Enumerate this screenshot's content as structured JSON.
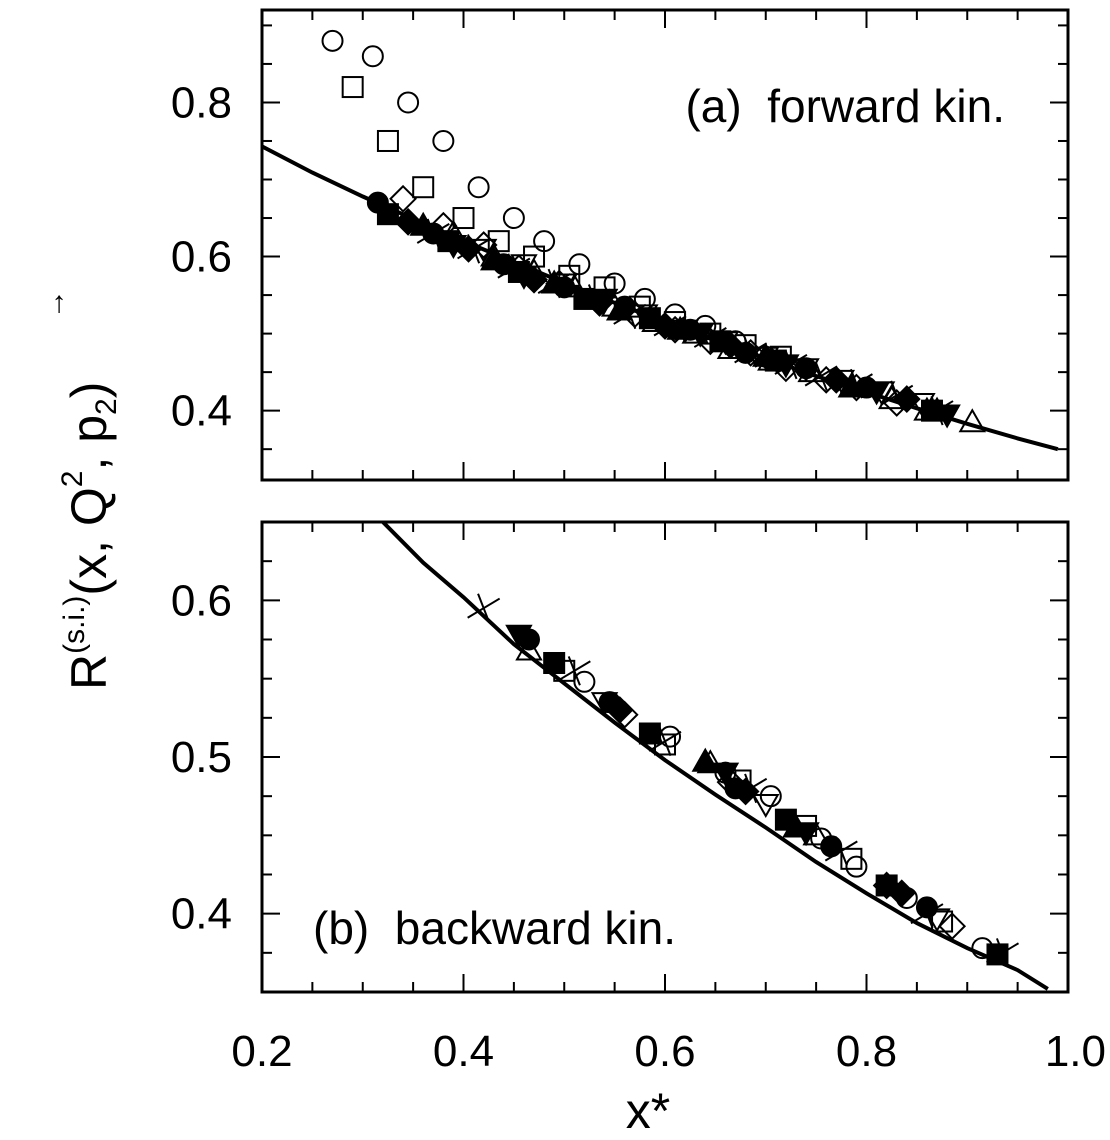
{
  "chart_data": {
    "type": "scatter",
    "x_axis": {
      "label": "x*",
      "range": [
        0.2,
        1.0
      ],
      "ticks": [
        "0.2",
        "0.4",
        "0.6",
        "0.8",
        "1.0"
      ]
    },
    "y_axis": {
      "label_main": "R",
      "label_sup": "(s.i.)",
      "label_args": "(x, Q",
      "label_q_exp": "2",
      "label_sep": ", p",
      "label_p_sub": "2",
      "label_close": ")",
      "arrow": "→"
    },
    "panels": [
      {
        "id": "a",
        "label": "(a)  forward kin.",
        "ylim": [
          0.31,
          0.92
        ],
        "y_ticks": [
          0.4,
          0.6,
          0.8
        ],
        "y_tick_labels": [
          "0.4",
          "0.6",
          "0.8"
        ],
        "curve": [
          [
            0.2,
            0.743
          ],
          [
            0.25,
            0.709
          ],
          [
            0.3,
            0.678
          ],
          [
            0.35,
            0.649
          ],
          [
            0.4,
            0.62
          ],
          [
            0.45,
            0.593
          ],
          [
            0.5,
            0.566
          ],
          [
            0.55,
            0.54
          ],
          [
            0.6,
            0.515
          ],
          [
            0.65,
            0.491
          ],
          [
            0.7,
            0.468
          ],
          [
            0.75,
            0.445
          ],
          [
            0.8,
            0.424
          ],
          [
            0.85,
            0.403
          ],
          [
            0.9,
            0.383
          ],
          [
            0.95,
            0.364
          ],
          [
            0.99,
            0.35
          ]
        ],
        "series": [
          {
            "marker": "open-circle",
            "points": [
              [
                0.27,
                0.88
              ],
              [
                0.31,
                0.86
              ],
              [
                0.345,
                0.8
              ],
              [
                0.38,
                0.75
              ],
              [
                0.415,
                0.69
              ],
              [
                0.45,
                0.65
              ],
              [
                0.48,
                0.62
              ],
              [
                0.515,
                0.59
              ],
              [
                0.55,
                0.565
              ],
              [
                0.58,
                0.545
              ],
              [
                0.61,
                0.525
              ],
              [
                0.64,
                0.51
              ],
              [
                0.67,
                0.49
              ],
              [
                0.7,
                0.47
              ]
            ]
          },
          {
            "marker": "open-square",
            "points": [
              [
                0.29,
                0.82
              ],
              [
                0.325,
                0.75
              ],
              [
                0.36,
                0.69
              ],
              [
                0.4,
                0.65
              ],
              [
                0.435,
                0.62
              ],
              [
                0.47,
                0.6
              ],
              [
                0.505,
                0.575
              ],
              [
                0.54,
                0.56
              ],
              [
                0.575,
                0.535
              ],
              [
                0.61,
                0.515
              ],
              [
                0.645,
                0.5
              ],
              [
                0.68,
                0.485
              ],
              [
                0.715,
                0.47
              ]
            ]
          },
          {
            "marker": "open-diamond",
            "points": [
              [
                0.34,
                0.675
              ],
              [
                0.38,
                0.64
              ],
              [
                0.42,
                0.615
              ],
              [
                0.455,
                0.585
              ],
              [
                0.495,
                0.565
              ],
              [
                0.535,
                0.54
              ],
              [
                0.57,
                0.525
              ],
              [
                0.61,
                0.505
              ],
              [
                0.645,
                0.49
              ],
              [
                0.685,
                0.475
              ],
              [
                0.72,
                0.455
              ],
              [
                0.76,
                0.44
              ],
              [
                0.79,
                0.43
              ],
              [
                0.83,
                0.41
              ]
            ]
          },
          {
            "marker": "open-triangle-up",
            "points": [
              [
                0.39,
                0.63
              ],
              [
                0.43,
                0.6
              ],
              [
                0.47,
                0.58
              ],
              [
                0.51,
                0.56
              ],
              [
                0.55,
                0.535
              ],
              [
                0.59,
                0.515
              ],
              [
                0.63,
                0.5
              ],
              [
                0.665,
                0.48
              ],
              [
                0.705,
                0.465
              ],
              [
                0.745,
                0.45
              ],
              [
                0.785,
                0.43
              ],
              [
                0.825,
                0.415
              ],
              [
                0.86,
                0.4
              ],
              [
                0.905,
                0.385
              ]
            ]
          },
          {
            "marker": "open-triangle-down",
            "points": [
              [
                0.42,
                0.61
              ],
              [
                0.46,
                0.59
              ],
              [
                0.5,
                0.565
              ],
              [
                0.54,
                0.545
              ],
              [
                0.58,
                0.525
              ],
              [
                0.62,
                0.505
              ],
              [
                0.66,
                0.49
              ],
              [
                0.7,
                0.47
              ],
              [
                0.74,
                0.455
              ],
              [
                0.775,
                0.44
              ],
              [
                0.815,
                0.425
              ],
              [
                0.855,
                0.41
              ]
            ]
          },
          {
            "marker": "cross",
            "points": [
              [
                0.37,
                0.63
              ],
              [
                0.41,
                0.61
              ],
              [
                0.45,
                0.585
              ],
              [
                0.49,
                0.565
              ],
              [
                0.53,
                0.545
              ],
              [
                0.565,
                0.525
              ],
              [
                0.605,
                0.51
              ],
              [
                0.645,
                0.495
              ],
              [
                0.685,
                0.475
              ],
              [
                0.725,
                0.46
              ],
              [
                0.755,
                0.445
              ],
              [
                0.79,
                0.435
              ],
              [
                0.83,
                0.42
              ],
              [
                0.87,
                0.4
              ]
            ]
          },
          {
            "marker": "filled-circle",
            "points": [
              [
                0.315,
                0.67
              ],
              [
                0.37,
                0.63
              ],
              [
                0.44,
                0.59
              ],
              [
                0.5,
                0.56
              ],
              [
                0.56,
                0.535
              ],
              [
                0.625,
                0.505
              ],
              [
                0.68,
                0.475
              ],
              [
                0.74,
                0.455
              ],
              [
                0.8,
                0.43
              ]
            ]
          },
          {
            "marker": "filled-square",
            "points": [
              [
                0.325,
                0.655
              ],
              [
                0.385,
                0.62
              ],
              [
                0.455,
                0.58
              ],
              [
                0.52,
                0.545
              ],
              [
                0.585,
                0.52
              ],
              [
                0.655,
                0.49
              ],
              [
                0.71,
                0.465
              ],
              [
                0.865,
                0.4
              ]
            ]
          },
          {
            "marker": "filled-diamond",
            "points": [
              [
                0.345,
                0.645
              ],
              [
                0.405,
                0.61
              ],
              [
                0.47,
                0.57
              ],
              [
                0.535,
                0.54
              ],
              [
                0.6,
                0.51
              ],
              [
                0.665,
                0.485
              ],
              [
                0.77,
                0.44
              ],
              [
                0.84,
                0.415
              ]
            ]
          },
          {
            "marker": "filled-triangle-up",
            "points": [
              [
                0.36,
                0.64
              ],
              [
                0.43,
                0.595
              ],
              [
                0.49,
                0.565
              ],
              [
                0.555,
                0.53
              ],
              [
                0.615,
                0.505
              ],
              [
                0.7,
                0.47
              ],
              [
                0.785,
                0.43
              ],
              [
                0.87,
                0.4
              ]
            ]
          },
          {
            "marker": "filled-triangle-down",
            "points": [
              [
                0.39,
                0.615
              ],
              [
                0.46,
                0.575
              ],
              [
                0.54,
                0.545
              ],
              [
                0.635,
                0.5
              ],
              [
                0.72,
                0.46
              ],
              [
                0.81,
                0.425
              ],
              [
                0.88,
                0.395
              ]
            ]
          }
        ]
      },
      {
        "id": "b",
        "label": "(b)  backward kin.",
        "ylim": [
          0.35,
          0.65
        ],
        "y_ticks": [
          0.4,
          0.5,
          0.6
        ],
        "y_tick_labels": [
          "0.4",
          "0.5",
          "0.6"
        ],
        "curve": [
          [
            0.32,
            0.65
          ],
          [
            0.36,
            0.624
          ],
          [
            0.4,
            0.602
          ],
          [
            0.45,
            0.572
          ],
          [
            0.5,
            0.547
          ],
          [
            0.55,
            0.522
          ],
          [
            0.6,
            0.498
          ],
          [
            0.65,
            0.476
          ],
          [
            0.7,
            0.455
          ],
          [
            0.75,
            0.433
          ],
          [
            0.8,
            0.413
          ],
          [
            0.85,
            0.394
          ],
          [
            0.9,
            0.378
          ],
          [
            0.95,
            0.364
          ],
          [
            0.98,
            0.352
          ]
        ],
        "series": [
          {
            "marker": "open-circle",
            "points": [
              [
                0.52,
                0.548
              ],
              [
                0.605,
                0.513
              ],
              [
                0.66,
                0.49
              ],
              [
                0.705,
                0.475
              ],
              [
                0.755,
                0.448
              ],
              [
                0.79,
                0.43
              ],
              [
                0.84,
                0.41
              ],
              [
                0.915,
                0.378
              ]
            ]
          },
          {
            "marker": "open-square",
            "points": [
              [
                0.5,
                0.555
              ],
              [
                0.6,
                0.508
              ],
              [
                0.675,
                0.485
              ],
              [
                0.74,
                0.456
              ],
              [
                0.785,
                0.435
              ],
              [
                0.875,
                0.395
              ]
            ]
          },
          {
            "marker": "open-diamond",
            "points": [
              [
                0.56,
                0.527
              ],
              [
                0.665,
                0.484
              ],
              [
                0.82,
                0.418
              ],
              [
                0.885,
                0.392
              ]
            ]
          },
          {
            "marker": "open-triangle-up",
            "points": [
              [
                0.465,
                0.568
              ],
              [
                0.645,
                0.496
              ],
              [
                0.75,
                0.45
              ]
            ]
          },
          {
            "marker": "open-triangle-down",
            "points": [
              [
                0.54,
                0.535
              ],
              [
                0.7,
                0.47
              ],
              [
                0.87,
                0.397
              ]
            ]
          },
          {
            "marker": "cross",
            "points": [
              [
                0.42,
                0.595
              ],
              [
                0.51,
                0.555
              ],
              [
                0.6,
                0.51
              ],
              [
                0.685,
                0.48
              ],
              [
                0.775,
                0.44
              ],
              [
                0.86,
                0.4
              ],
              [
                0.935,
                0.375
              ]
            ]
          },
          {
            "marker": "filled-circle",
            "points": [
              [
                0.465,
                0.575
              ],
              [
                0.545,
                0.535
              ],
              [
                0.67,
                0.48
              ],
              [
                0.765,
                0.443
              ],
              [
                0.86,
                0.404
              ]
            ]
          },
          {
            "marker": "filled-square",
            "points": [
              [
                0.49,
                0.56
              ],
              [
                0.585,
                0.515
              ],
              [
                0.72,
                0.46
              ],
              [
                0.82,
                0.418
              ],
              [
                0.93,
                0.374
              ]
            ]
          },
          {
            "marker": "filled-diamond",
            "points": [
              [
                0.555,
                0.53
              ],
              [
                0.68,
                0.478
              ],
              [
                0.835,
                0.413
              ]
            ]
          },
          {
            "marker": "filled-triangle-up",
            "points": [
              [
                0.64,
                0.497
              ],
              [
                0.73,
                0.455
              ]
            ]
          },
          {
            "marker": "filled-triangle-down",
            "points": [
              [
                0.455,
                0.578
              ],
              [
                0.66,
                0.49
              ],
              [
                0.74,
                0.452
              ]
            ]
          }
        ]
      }
    ]
  }
}
